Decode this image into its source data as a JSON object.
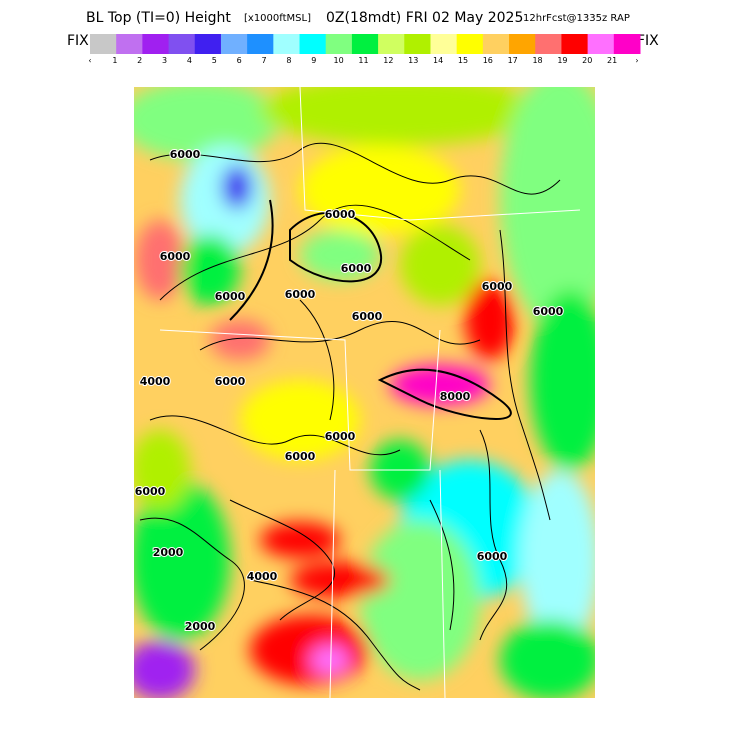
{
  "header": {
    "title_main": "BL Top (TI=0) Height",
    "title_units": "[x1000ftMSL]",
    "title_time": "0Z(18mdt) FRI 02 May 2025",
    "title_model": "12hrFcst@1335z RAP"
  },
  "colorbar": {
    "left_label": "FIX",
    "right_label": "FIX",
    "colors": [
      "#c8c8c8",
      "#c070f0",
      "#a020f0",
      "#8050f0",
      "#4020f0",
      "#70b0ff",
      "#1e90ff",
      "#a0ffff",
      "#00ffff",
      "#80ff80",
      "#00f040",
      "#d0ff60",
      "#b0f000",
      "#ffff98",
      "#ffff00",
      "#ffd060",
      "#ffa500",
      "#ff7070",
      "#ff0000",
      "#ff70ff",
      "#ff00c8"
    ],
    "labels": [
      "‹",
      "1",
      "2",
      "3",
      "4",
      "5",
      "6",
      "7",
      "8",
      "9",
      "10",
      "11",
      "12",
      "13",
      "14",
      "15",
      "16",
      "17",
      "18",
      "19",
      "20",
      "21",
      "›"
    ]
  },
  "map": {
    "contour_labels": [
      "6000",
      "6000",
      "6000",
      "6000",
      "6000",
      "6000",
      "6000",
      "4000",
      "6000",
      "6000",
      "6000",
      "2000",
      "4000",
      "2000",
      "6000",
      "6000",
      "6000",
      "8000",
      "6000"
    ]
  }
}
